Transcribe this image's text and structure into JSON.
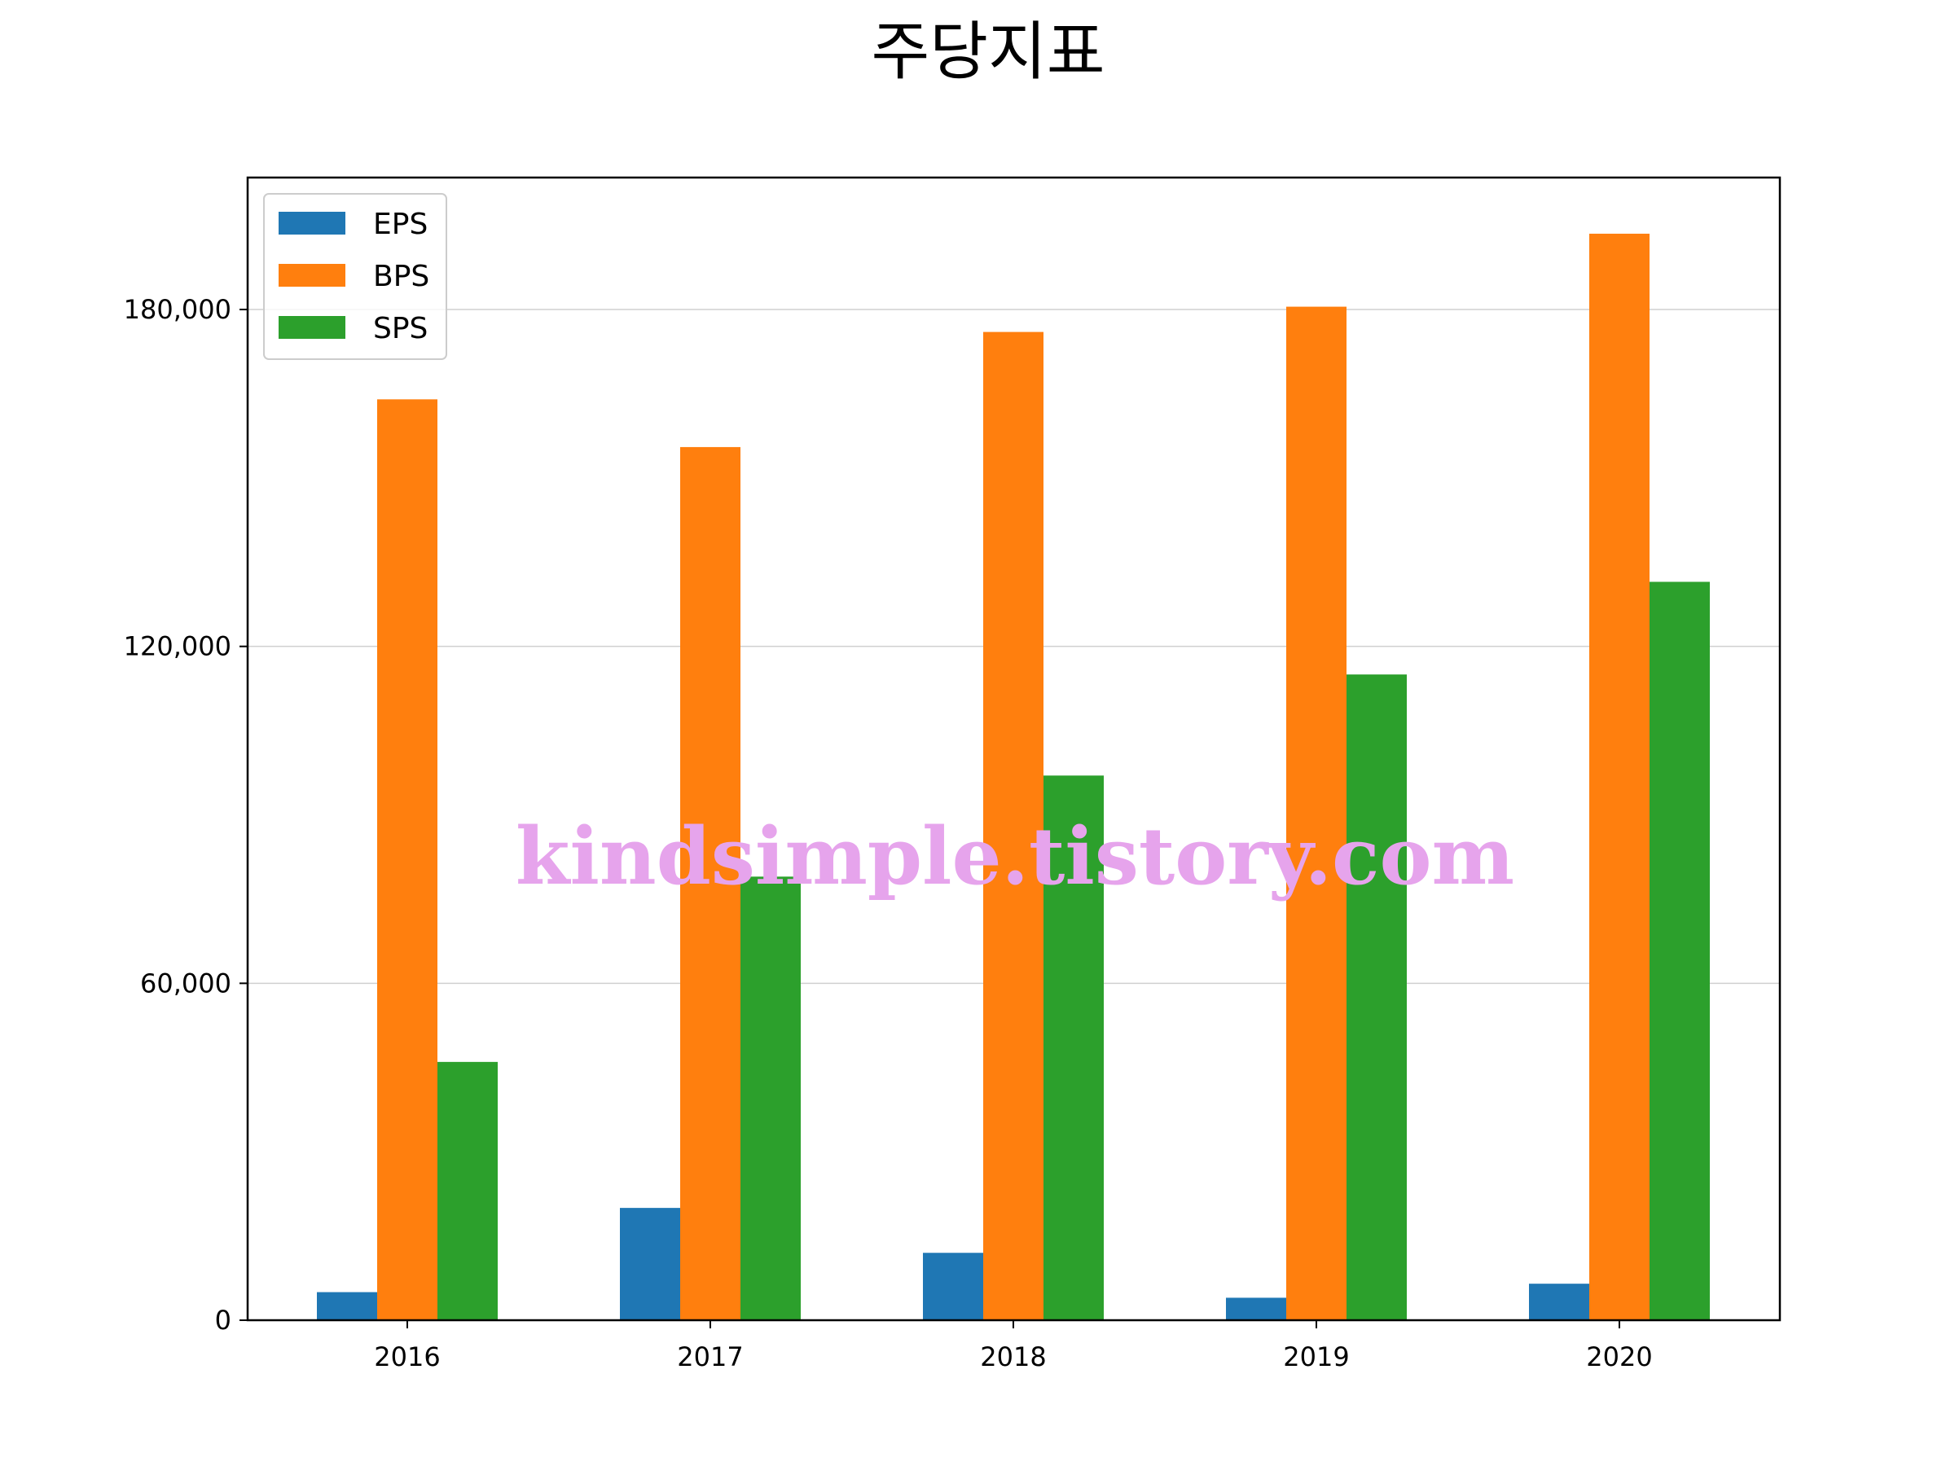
{
  "chart_data": {
    "type": "bar",
    "title": "주당지표",
    "xlabel": "",
    "ylabel": "",
    "categories": [
      "2016",
      "2017",
      "2018",
      "2019",
      "2020"
    ],
    "series": [
      {
        "name": "EPS",
        "color": "#1f77b4",
        "values": [
          5000,
          20000,
          12000,
          4000,
          6500
        ]
      },
      {
        "name": "BPS",
        "color": "#ff7f0e",
        "values": [
          164000,
          155500,
          176000,
          180500,
          193500
        ]
      },
      {
        "name": "SPS",
        "color": "#2ca02c",
        "values": [
          46000,
          79000,
          97000,
          115000,
          131500
        ]
      }
    ],
    "ylim": [
      0,
      203500
    ],
    "yticks": [
      0,
      60000,
      120000,
      180000
    ],
    "ytick_labels": [
      "0",
      "60,000",
      "120,000",
      "180,000"
    ],
    "grid": "y",
    "legend_position": "top-left"
  },
  "watermark": {
    "text": "kindsimple.tistory.com",
    "color": "#e6a4ec"
  }
}
